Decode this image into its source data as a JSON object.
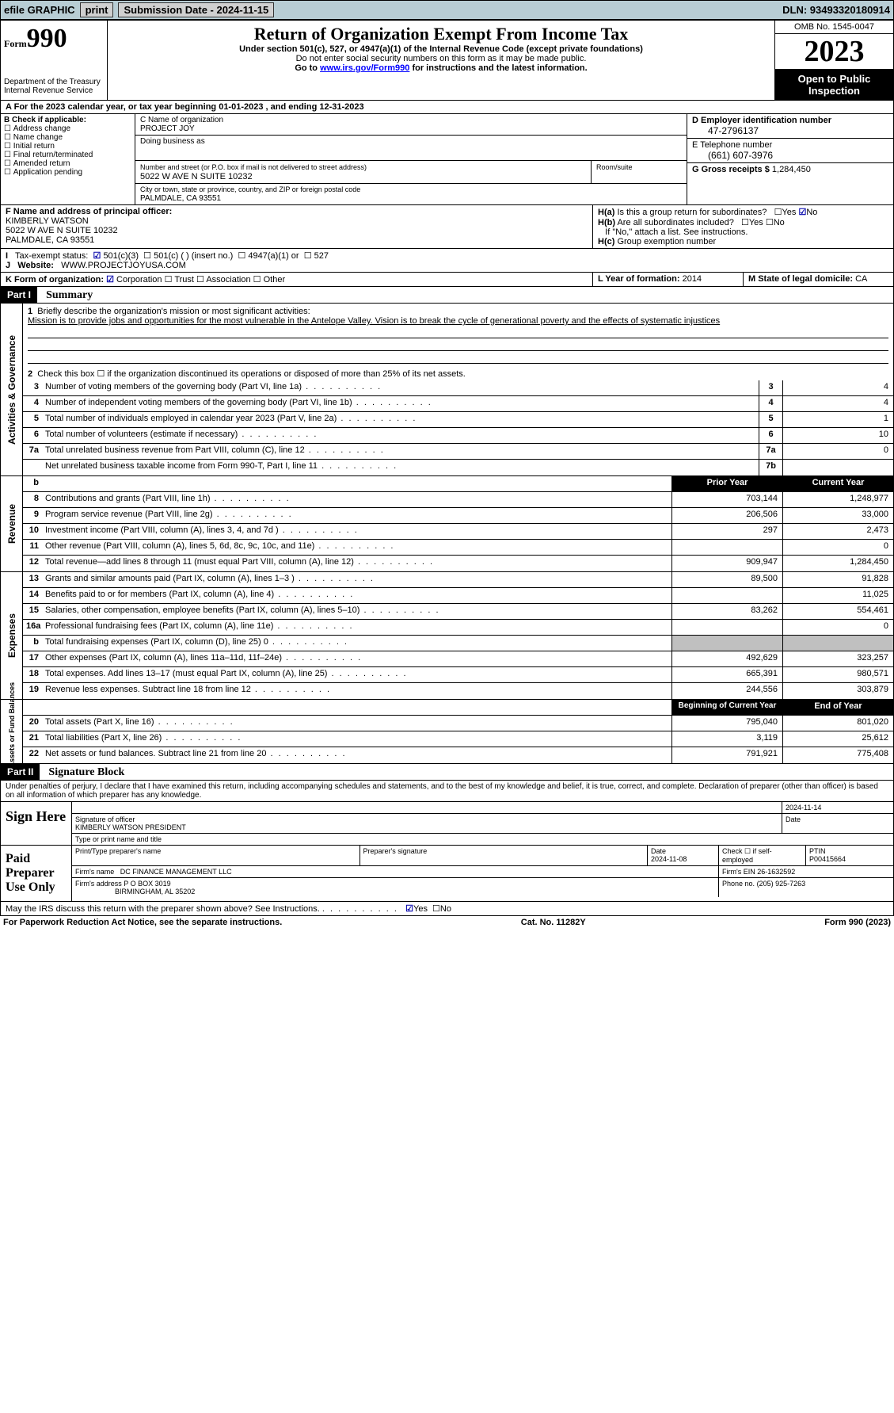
{
  "topbar": {
    "efile": "efile GRAPHIC",
    "print": "print",
    "sub_label": "Submission Date - 2024-11-15",
    "dln": "DLN: 93493320180914"
  },
  "header": {
    "form_prefix": "Form",
    "form_num": "990",
    "dept": "Department of the Treasury",
    "irs": "Internal Revenue Service",
    "title": "Return of Organization Exempt From Income Tax",
    "sub1": "Under section 501(c), 527, or 4947(a)(1) of the Internal Revenue Code (except private foundations)",
    "sub2": "Do not enter social security numbers on this form as it may be made public.",
    "sub3_pre": "Go to ",
    "sub3_link": "www.irs.gov/Form990",
    "sub3_post": " for instructions and the latest information.",
    "omb": "OMB No. 1545-0047",
    "year": "2023",
    "open": "Open to Public Inspection"
  },
  "row_a": "For the 2023 calendar year, or tax year beginning 01-01-2023    , and ending 12-31-2023",
  "box_b": {
    "label": "B Check if applicable:",
    "opts": [
      "Address change",
      "Name change",
      "Initial return",
      "Final return/terminated",
      "Amended return",
      "Application pending"
    ]
  },
  "box_c": {
    "name_label": "C Name of organization",
    "name": "PROJECT JOY",
    "dba_label": "Doing business as",
    "street_label": "Number and street (or P.O. box if mail is not delivered to street address)",
    "street": "5022 W AVE N SUITE 10232",
    "suite_label": "Room/suite",
    "city_label": "City or town, state or province, country, and ZIP or foreign postal code",
    "city": "PALMDALE, CA  93551"
  },
  "box_d": {
    "label": "D Employer identification number",
    "val": "47-2796137"
  },
  "box_e": {
    "label": "E Telephone number",
    "val": "(661) 607-3976"
  },
  "box_g": {
    "label": "G Gross receipts $",
    "val": "1,284,450"
  },
  "box_f": {
    "label": "F  Name and address of principal officer:",
    "name": "KIMBERLY WATSON",
    "addr1": "5022 W AVE N SUITE 10232",
    "addr2": "PALMDALE, CA  93551"
  },
  "box_h": {
    "a": "Is this a group return for subordinates?",
    "b": "Are all subordinates included?",
    "b_note": "If \"No,\" attach a list. See instructions.",
    "c": "Group exemption number"
  },
  "box_i": {
    "label": "Tax-exempt status:",
    "opt1": "501(c)(3)",
    "opt2": "501(c) (  ) (insert no.)",
    "opt3": "4947(a)(1) or",
    "opt4": "527"
  },
  "box_j": {
    "label": "Website:",
    "val": "WWW.PROJECTJOYUSA.COM"
  },
  "box_k": {
    "label": "K Form of organization:",
    "opts": [
      "Corporation",
      "Trust",
      "Association",
      "Other"
    ]
  },
  "box_l": {
    "label": "L Year of formation:",
    "val": "2014"
  },
  "box_m": {
    "label": "M State of legal domicile:",
    "val": "CA"
  },
  "part1": {
    "label": "Part I",
    "title": "Summary",
    "mission_label": "Briefly describe the organization's mission or most significant activities:",
    "mission": "Mission is to provide jobs and opportunities for the most vulnerable in the Antelope Valley. Vision is to break the cycle of generational poverty and the effects of systematic injustices",
    "line2": "Check this box ☐ if the organization discontinued its operations or disposed of more than 25% of its net assets.",
    "sections": {
      "gov": {
        "label": "Activities & Governance",
        "rows": [
          {
            "n": "3",
            "d": "Number of voting members of the governing body (Part VI, line 1a)",
            "box": "3",
            "v": "4"
          },
          {
            "n": "4",
            "d": "Number of independent voting members of the governing body (Part VI, line 1b)",
            "box": "4",
            "v": "4"
          },
          {
            "n": "5",
            "d": "Total number of individuals employed in calendar year 2023 (Part V, line 2a)",
            "box": "5",
            "v": "1"
          },
          {
            "n": "6",
            "d": "Total number of volunteers (estimate if necessary)",
            "box": "6",
            "v": "10"
          },
          {
            "n": "7a",
            "d": "Total unrelated business revenue from Part VIII, column (C), line 12",
            "box": "7a",
            "v": "0"
          },
          {
            "n": "",
            "d": "Net unrelated business taxable income from Form 990-T, Part I, line 11",
            "box": "7b",
            "v": ""
          }
        ]
      },
      "rev": {
        "label": "Revenue",
        "header": {
          "n": "b",
          "prior": "Prior Year",
          "curr": "Current Year"
        },
        "rows": [
          {
            "n": "8",
            "d": "Contributions and grants (Part VIII, line 1h)",
            "p": "703,144",
            "c": "1,248,977"
          },
          {
            "n": "9",
            "d": "Program service revenue (Part VIII, line 2g)",
            "p": "206,506",
            "c": "33,000"
          },
          {
            "n": "10",
            "d": "Investment income (Part VIII, column (A), lines 3, 4, and 7d )",
            "p": "297",
            "c": "2,473"
          },
          {
            "n": "11",
            "d": "Other revenue (Part VIII, column (A), lines 5, 6d, 8c, 9c, 10c, and 11e)",
            "p": "",
            "c": "0"
          },
          {
            "n": "12",
            "d": "Total revenue—add lines 8 through 11 (must equal Part VIII, column (A), line 12)",
            "p": "909,947",
            "c": "1,284,450"
          }
        ]
      },
      "exp": {
        "label": "Expenses",
        "rows": [
          {
            "n": "13",
            "d": "Grants and similar amounts paid (Part IX, column (A), lines 1–3 )",
            "p": "89,500",
            "c": "91,828"
          },
          {
            "n": "14",
            "d": "Benefits paid to or for members (Part IX, column (A), line 4)",
            "p": "",
            "c": "11,025"
          },
          {
            "n": "15",
            "d": "Salaries, other compensation, employee benefits (Part IX, column (A), lines 5–10)",
            "p": "83,262",
            "c": "554,461"
          },
          {
            "n": "16a",
            "d": "Professional fundraising fees (Part IX, column (A), line 11e)",
            "p": "",
            "c": "0"
          },
          {
            "n": "b",
            "d": "Total fundraising expenses (Part IX, column (D), line 25) 0",
            "p": "GREY",
            "c": "GREY"
          },
          {
            "n": "17",
            "d": "Other expenses (Part IX, column (A), lines 11a–11d, 11f–24e)",
            "p": "492,629",
            "c": "323,257"
          },
          {
            "n": "18",
            "d": "Total expenses. Add lines 13–17 (must equal Part IX, column (A), line 25)",
            "p": "665,391",
            "c": "980,571"
          },
          {
            "n": "19",
            "d": "Revenue less expenses. Subtract line 18 from line 12",
            "p": "244,556",
            "c": "303,879"
          }
        ]
      },
      "net": {
        "label": "Net Assets or Fund Balances",
        "header": {
          "prior": "Beginning of Current Year",
          "curr": "End of Year"
        },
        "rows": [
          {
            "n": "20",
            "d": "Total assets (Part X, line 16)",
            "p": "795,040",
            "c": "801,020"
          },
          {
            "n": "21",
            "d": "Total liabilities (Part X, line 26)",
            "p": "3,119",
            "c": "25,612"
          },
          {
            "n": "22",
            "d": "Net assets or fund balances. Subtract line 21 from line 20",
            "p": "791,921",
            "c": "775,408"
          }
        ]
      }
    }
  },
  "part2": {
    "label": "Part II",
    "title": "Signature Block",
    "penalty": "Under penalties of perjury, I declare that I have examined this return, including accompanying schedules and statements, and to the best of my knowledge and belief, it is true, correct, and complete. Declaration of preparer (other than officer) is based on all information of which preparer has any knowledge."
  },
  "sign": {
    "here": "Sign Here",
    "date": "2024-11-14",
    "sig_label": "Signature of officer",
    "officer": "KIMBERLY WATSON  PRESIDENT",
    "type_label": "Type or print name and title",
    "date_label": "Date"
  },
  "paid": {
    "label": "Paid Preparer Use Only",
    "name_label": "Print/Type preparer's name",
    "sig_label": "Preparer's signature",
    "date_label": "Date",
    "date": "2024-11-08",
    "check_label": "Check ☐ if self-employed",
    "ptin_label": "PTIN",
    "ptin": "P00415664",
    "firm_label": "Firm's name",
    "firm": "DC FINANCE MANAGEMENT LLC",
    "ein_label": "Firm's EIN",
    "ein": "26-1632592",
    "addr_label": "Firm's address",
    "addr1": "P O BOX 3019",
    "addr2": "BIRMINGHAM, AL  35202",
    "phone_label": "Phone no.",
    "phone": "(205) 925-7263"
  },
  "discuss": "May the IRS discuss this return with the preparer shown above? See Instructions.",
  "footer": {
    "left": "For Paperwork Reduction Act Notice, see the separate instructions.",
    "mid": "Cat. No. 11282Y",
    "right": "Form 990 (2023)"
  }
}
